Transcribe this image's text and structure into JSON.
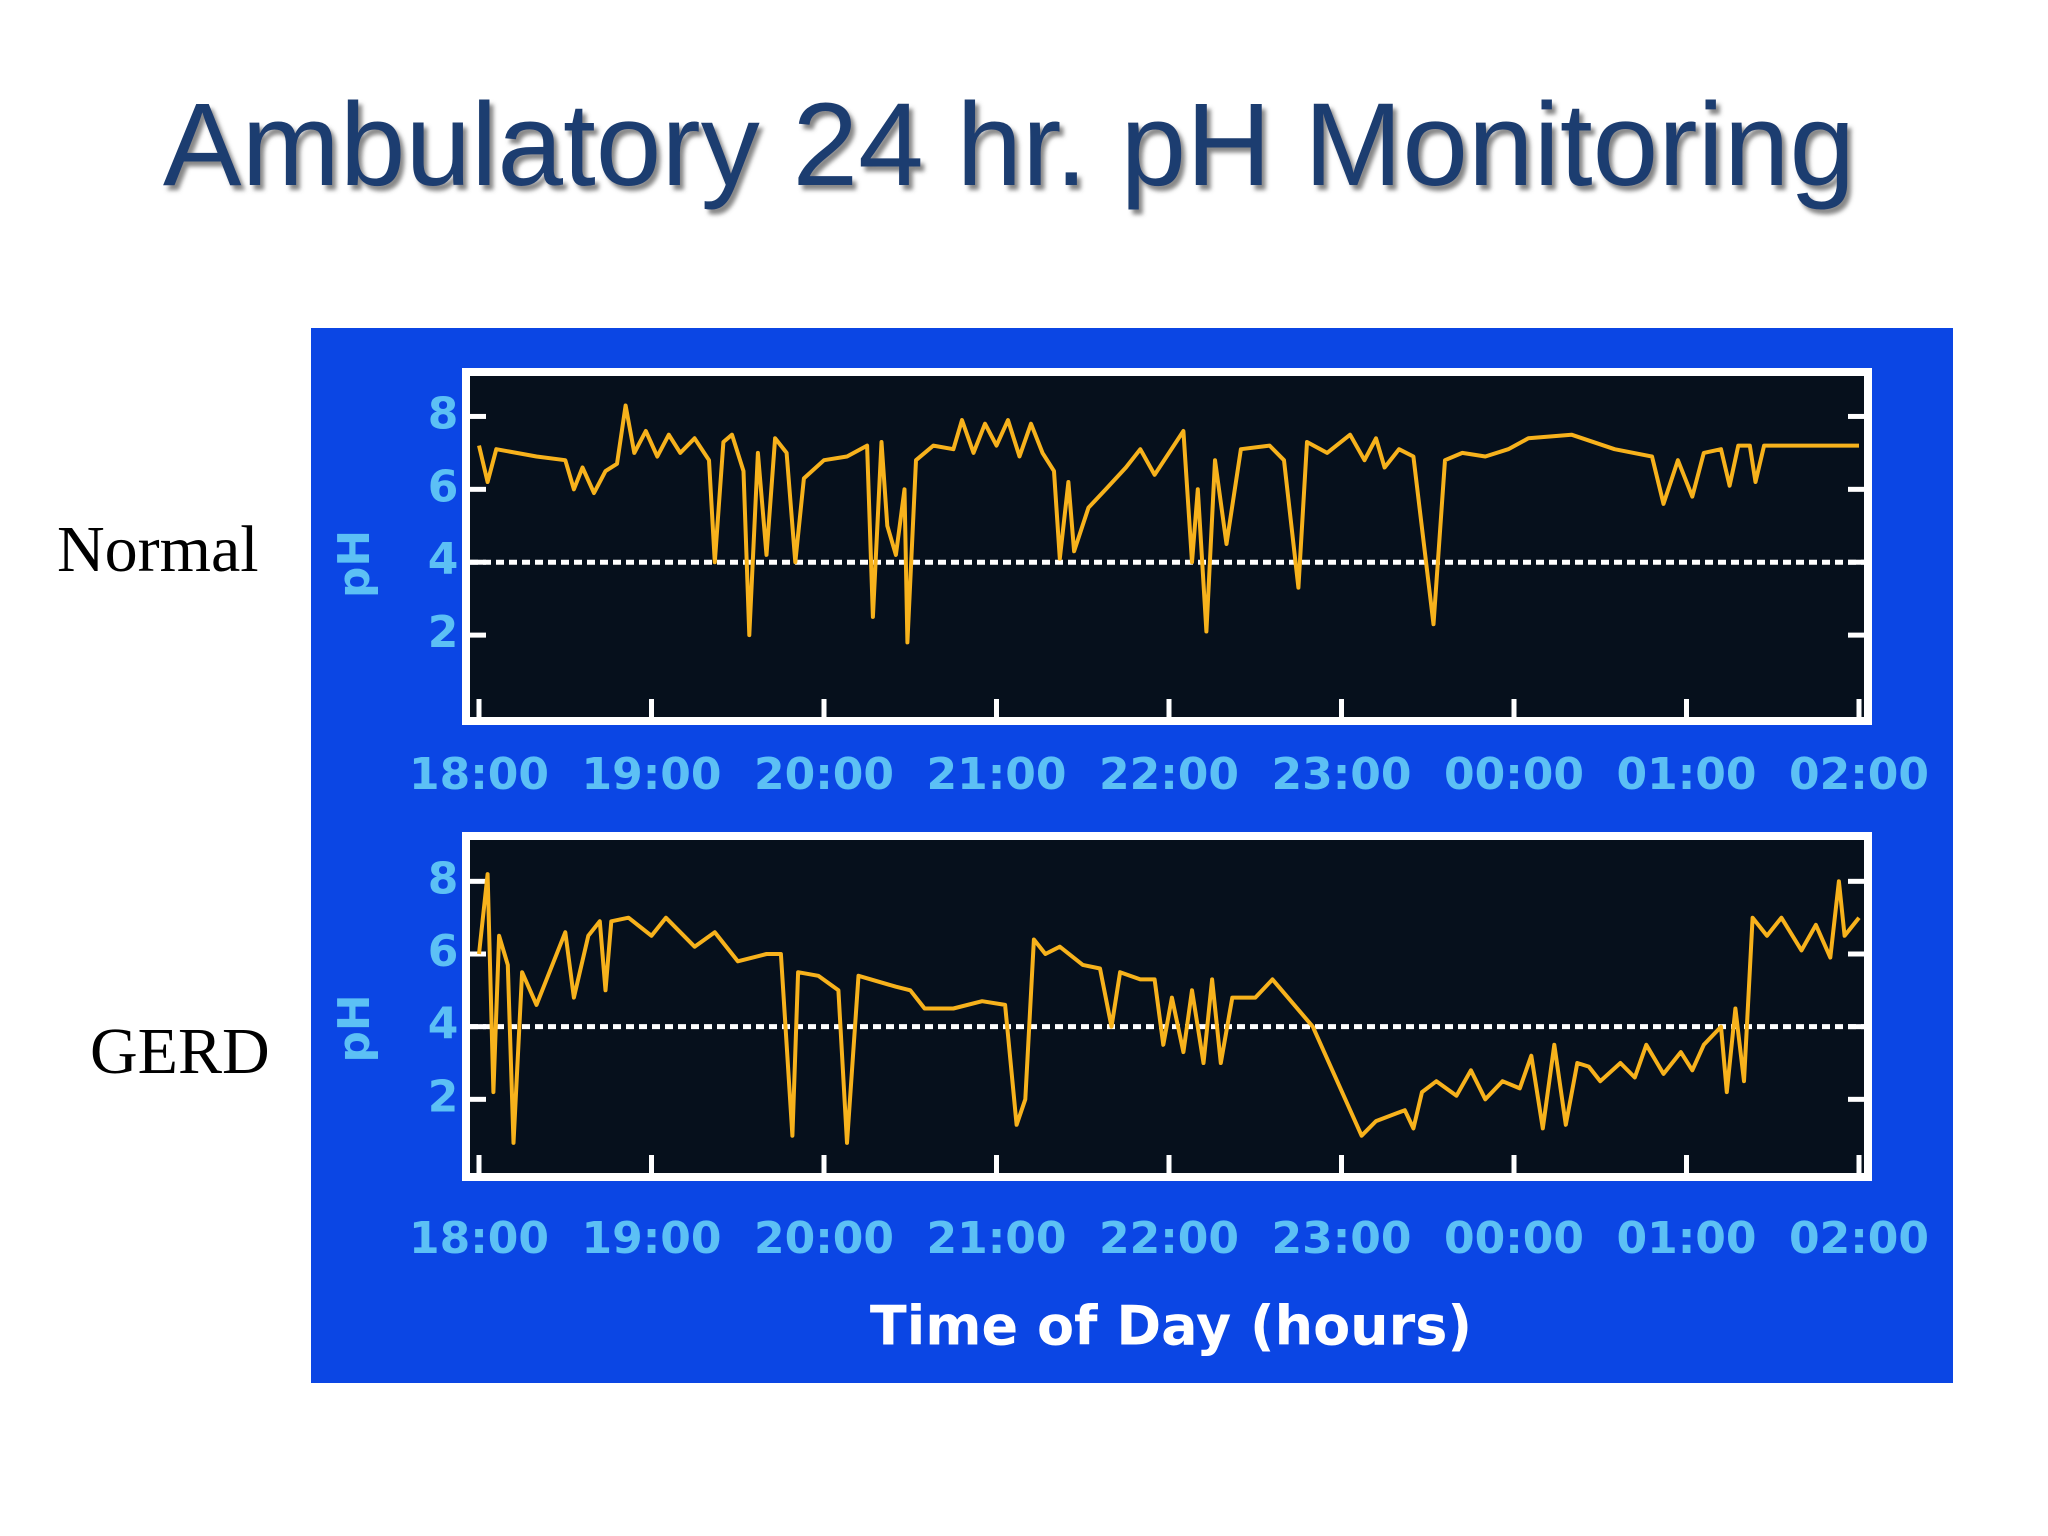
{
  "title": "Ambulatory 24 hr. pH Monitoring",
  "chart_data": [
    {
      "type": "line",
      "label": "Normal",
      "ylabel": "pH",
      "threshold": 4,
      "xlim": [
        "18:00",
        "02:00"
      ],
      "xticks": [
        "18:00",
        "19:00",
        "20:00",
        "21:00",
        "22:00",
        "23:00",
        "00:00",
        "01:00",
        "02:00"
      ],
      "ylim": [
        0,
        9
      ],
      "yticks": [
        2,
        4,
        6,
        8
      ],
      "x": [
        "18:00",
        "18:03",
        "18:06",
        "18:20",
        "18:30",
        "18:33",
        "18:36",
        "18:40",
        "18:44",
        "18:48",
        "18:51",
        "18:54",
        "18:58",
        "19:02",
        "19:06",
        "19:10",
        "19:15",
        "19:20",
        "19:22",
        "19:25",
        "19:28",
        "19:32",
        "19:34",
        "19:37",
        "19:40",
        "19:43",
        "19:47",
        "19:50",
        "19:53",
        "20:00",
        "20:08",
        "20:15",
        "20:17",
        "20:20",
        "20:22",
        "20:25",
        "20:28",
        "20:29",
        "20:32",
        "20:38",
        "20:45",
        "20:48",
        "20:52",
        "20:56",
        "21:00",
        "21:04",
        "21:08",
        "21:12",
        "21:16",
        "21:20",
        "21:22",
        "21:25",
        "21:27",
        "21:32",
        "21:38",
        "21:45",
        "21:50",
        "21:55",
        "22:05",
        "22:08",
        "22:10",
        "22:13",
        "22:16",
        "22:20",
        "22:25",
        "22:35",
        "22:40",
        "22:45",
        "22:48",
        "22:55",
        "23:03",
        "23:08",
        "23:12",
        "23:15",
        "23:20",
        "23:25",
        "23:32",
        "23:36",
        "23:42",
        "23:50",
        "23:58",
        "00:05",
        "00:20",
        "00:35",
        "00:48",
        "00:52",
        "00:57",
        "01:02",
        "01:06",
        "01:12",
        "01:15",
        "01:18",
        "01:22",
        "01:24",
        "01:27",
        "02:00"
      ],
      "series": [
        {
          "color": "#f7b21c",
          "values": [
            7.2,
            6.2,
            7.1,
            6.9,
            6.8,
            6.0,
            6.6,
            5.9,
            6.5,
            6.7,
            8.3,
            7.0,
            7.6,
            6.9,
            7.5,
            7.0,
            7.4,
            6.8,
            4.0,
            7.3,
            7.5,
            6.5,
            2.0,
            7.0,
            4.2,
            7.4,
            7.0,
            4.0,
            6.3,
            6.8,
            6.9,
            7.2,
            2.5,
            7.3,
            5.0,
            4.2,
            6.0,
            1.8,
            6.8,
            7.2,
            7.1,
            7.9,
            7.0,
            7.8,
            7.2,
            7.9,
            6.9,
            7.8,
            7.0,
            6.5,
            4.1,
            6.2,
            4.3,
            5.5,
            6.0,
            6.6,
            7.1,
            6.4,
            7.6,
            4.0,
            6.0,
            2.1,
            6.8,
            4.5,
            7.1,
            7.2,
            6.8,
            3.3,
            7.3,
            7.0,
            7.5,
            6.8,
            7.4,
            6.6,
            7.1,
            6.9,
            2.3,
            6.8,
            7.0,
            6.9,
            7.1,
            7.4,
            7.5,
            7.1,
            6.9,
            5.6,
            6.8,
            5.8,
            7.0,
            7.1,
            6.1,
            7.2,
            7.2,
            6.2,
            7.2,
            7.2
          ]
        }
      ]
    },
    {
      "type": "line",
      "label": "GERD",
      "ylabel": "pH",
      "xlabel": "Time of Day (hours)",
      "threshold": 4,
      "xlim": [
        "18:00",
        "02:00"
      ],
      "xticks": [
        "18:00",
        "19:00",
        "20:00",
        "21:00",
        "22:00",
        "23:00",
        "00:00",
        "01:00",
        "02:00"
      ],
      "ylim": [
        0,
        9
      ],
      "yticks": [
        2,
        4,
        6,
        8
      ],
      "x": [
        "18:00",
        "18:03",
        "18:05",
        "18:07",
        "18:10",
        "18:12",
        "18:15",
        "18:20",
        "18:30",
        "18:33",
        "18:38",
        "18:42",
        "18:44",
        "18:46",
        "18:52",
        "19:00",
        "19:05",
        "19:15",
        "19:22",
        "19:30",
        "19:40",
        "19:45",
        "19:49",
        "19:51",
        "19:58",
        "20:05",
        "20:08",
        "20:12",
        "20:25",
        "20:30",
        "20:35",
        "20:45",
        "20:55",
        "21:03",
        "21:07",
        "21:10",
        "21:13",
        "21:17",
        "21:22",
        "21:30",
        "21:36",
        "21:40",
        "21:43",
        "21:50",
        "21:55",
        "21:58",
        "22:01",
        "22:05",
        "22:08",
        "22:12",
        "22:15",
        "22:18",
        "22:22",
        "22:30",
        "22:36",
        "22:50",
        "23:07",
        "23:12",
        "23:22",
        "23:25",
        "23:28",
        "23:33",
        "23:40",
        "23:45",
        "23:50",
        "23:56",
        "00:02",
        "00:06",
        "00:10",
        "00:14",
        "00:18",
        "00:22",
        "00:26",
        "00:30",
        "00:37",
        "00:42",
        "00:46",
        "00:52",
        "00:58",
        "01:02",
        "01:06",
        "01:12",
        "01:14",
        "01:17",
        "01:20",
        "01:23",
        "01:28",
        "01:33",
        "01:40",
        "01:45",
        "01:50",
        "01:53",
        "01:55",
        "02:00"
      ],
      "series": [
        {
          "color": "#f7b21c",
          "values": [
            6.0,
            8.2,
            2.2,
            6.5,
            5.7,
            0.8,
            5.5,
            4.6,
            6.6,
            4.8,
            6.5,
            6.9,
            5.0,
            6.9,
            7.0,
            6.5,
            7.0,
            6.2,
            6.6,
            5.8,
            6.0,
            6.0,
            1.0,
            5.5,
            5.4,
            5.0,
            0.8,
            5.4,
            5.1,
            5.0,
            4.5,
            4.5,
            4.7,
            4.6,
            1.3,
            2.0,
            6.4,
            6.0,
            6.2,
            5.7,
            5.6,
            4.0,
            5.5,
            5.3,
            5.3,
            3.5,
            4.8,
            3.3,
            5.0,
            3.0,
            5.3,
            3.0,
            4.8,
            4.8,
            5.3,
            4.0,
            1.0,
            1.4,
            1.7,
            1.2,
            2.2,
            2.5,
            2.1,
            2.8,
            2.0,
            2.5,
            2.3,
            3.2,
            1.2,
            3.5,
            1.3,
            3.0,
            2.9,
            2.5,
            3.0,
            2.6,
            3.5,
            2.7,
            3.3,
            2.8,
            3.5,
            4.0,
            2.2,
            4.5,
            2.5,
            7.0,
            6.5,
            7.0,
            6.1,
            6.8,
            5.9,
            8.0,
            6.5,
            7.0
          ]
        }
      ]
    }
  ]
}
